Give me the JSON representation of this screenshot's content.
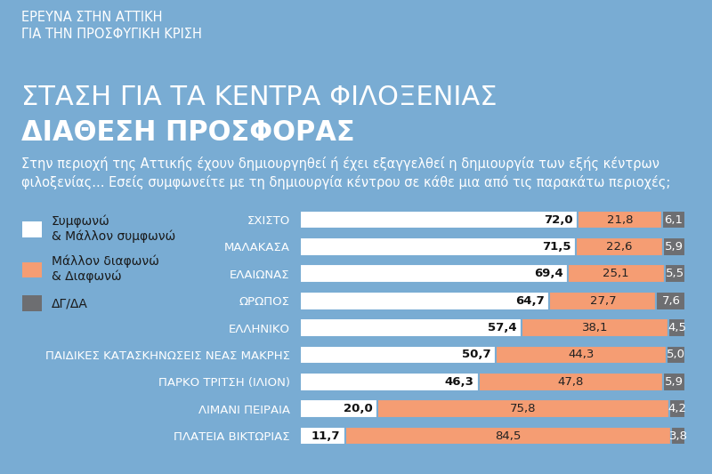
{
  "chart_data": {
    "type": "bar",
    "orientation": "horizontal",
    "stacked": true,
    "data_labels": true,
    "tick_labels": "y",
    "legend": "upper left",
    "annotations": [
      "ΕΡΕΥΝΑ ΣΤΗΝ ΑΤΤΙΚΗ\nΓΙΑ ΤΗΝ ΠΡΟΣΦΥΓΙΚΗ ΚΡΙΣΗ",
      "Στην περιοχή της Αττικής έχουν δημιουργηθεί ή έχει εξαγγελθεί η δημιουργία των εξής κέντρων φιλοξενίας... Εσείς συμφωνείτε με τη δημιουργία κέντρου σε κάθε μια από τις παρακάτω περιοχές;"
    ],
    "title": "ΣΤΑΣΗ ΓΙΑ ΤΑ ΚΕΝΤΡΑ ΦΙΛΟΞΕΝΙΑΣ",
    "subtitle": "ΔΙΑΘΕΣΗ ΠΡΟΣΦΟΡΑΣ",
    "categories": [
      "ΣΧΙΣΤΟ",
      "ΜΑΛΑΚΑΣΑ",
      "ΕΛΑΙΩΝΑΣ",
      "ΩΡΩΠΟΣ",
      "ΕΛΛΗΝΙΚΟ",
      "ΠΑΙΔΙΚΕΣ ΚΑΤΑΣΚΗΝΩΣΕΙΣ ΝΕΑΣ ΜΑΚΡΗΣ",
      "ΠΑΡΚΟ ΤΡΙΤΣΗ (ΙΛΙΟΝ)",
      "ΛΙΜΑΝΙ ΠΕΙΡΑΙΑ",
      "ΠΛΑΤΕΙΑ ΒΙΚΤΩΡΙΑΣ"
    ],
    "xlim": [
      0,
      100
    ],
    "series": [
      {
        "name": "Συμφωνώ\n& Μάλλον συμφωνώ",
        "color": "#ffffff",
        "values": [
          72.0,
          71.5,
          69.4,
          64.7,
          57.4,
          50.7,
          46.3,
          20.0,
          11.7
        ],
        "value_labels": [
          "72,0",
          "71,5",
          "69,4",
          "64,7",
          "57,4",
          "50,7",
          "46,3",
          "20,0",
          "11,7"
        ]
      },
      {
        "name": "Μάλλον διαφωνώ\n& Διαφωνώ",
        "color": "#f59d73",
        "values": [
          21.8,
          22.6,
          25.1,
          27.7,
          38.1,
          44.3,
          47.8,
          75.8,
          84.5
        ],
        "value_labels": [
          "21,8",
          "22,6",
          "25,1",
          "27,7",
          "38,1",
          "44,3",
          "47,8",
          "75,8",
          "84,5"
        ]
      },
      {
        "name": "ΔΓ/ΔΑ",
        "color": "#6d6e71",
        "values": [
          6.1,
          5.9,
          5.5,
          7.6,
          4.5,
          5.0,
          5.9,
          4.2,
          3.8
        ],
        "value_labels": [
          "6,1",
          "5,9",
          "5,5",
          "7,6",
          "4,5",
          "5,0",
          "5,9",
          "4,2",
          "3,8"
        ]
      }
    ]
  }
}
